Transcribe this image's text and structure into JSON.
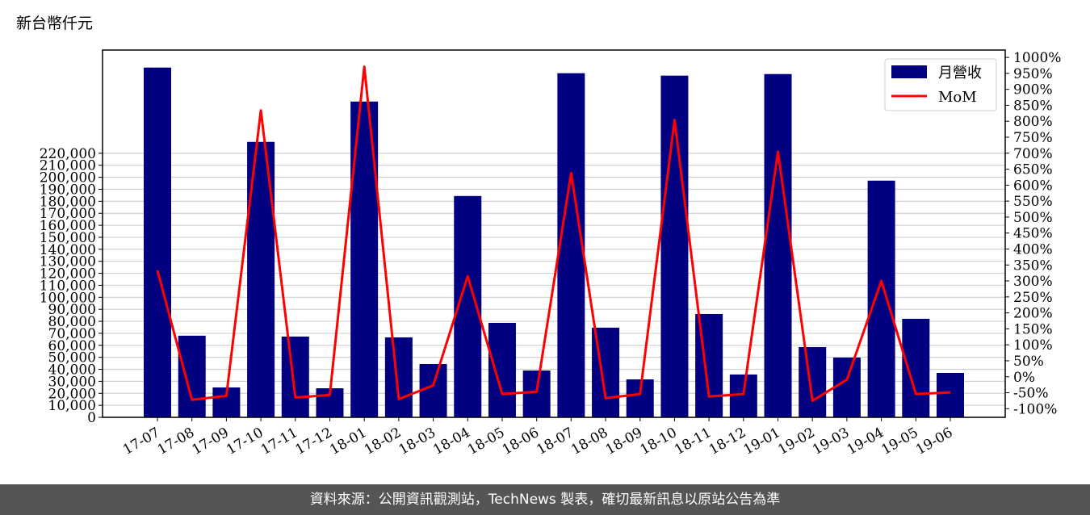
{
  "unit_label": "新台幣仟元",
  "footer": "資料來源：公開資訊觀測站，TechNews 製表，確切最新訊息以原站公告為準",
  "chart_data": {
    "type": "bar",
    "categories": [
      "17-07",
      "17-08",
      "17-09",
      "17-10",
      "17-11",
      "17-12",
      "18-01",
      "18-02",
      "18-03",
      "18-04",
      "18-05",
      "18-06",
      "18-07",
      "18-08",
      "18-09",
      "18-10",
      "18-11",
      "18-12",
      "19-01",
      "19-02",
      "19-03",
      "19-04",
      "19-05",
      "19-06"
    ],
    "series": [
      {
        "name": "月營收",
        "type": "bar",
        "axis": "left",
        "color": "#000080",
        "values": [
          291400,
          68000,
          24900,
          229500,
          67300,
          24200,
          263100,
          66600,
          44400,
          184400,
          78700,
          39000,
          286700,
          74700,
          31600,
          284700,
          86100,
          35700,
          286000,
          58500,
          49800,
          197200,
          82100,
          37000
        ]
      },
      {
        "name": "MoM",
        "type": "line",
        "axis": "right",
        "color": "#ff0000",
        "values": [
          333,
          -72,
          -60,
          834,
          -65,
          -57,
          971,
          -70,
          -27,
          315,
          -54,
          -47,
          638,
          -67,
          -54,
          804,
          -62,
          -54,
          705,
          -75,
          -9,
          300,
          -54,
          -49
        ]
      }
    ],
    "left_axis": {
      "ticks": [
        0,
        10000,
        20000,
        30000,
        40000,
        50000,
        60000,
        70000,
        80000,
        90000,
        100000,
        110000,
        120000,
        130000,
        140000,
        150000,
        160000,
        170000,
        180000,
        190000,
        200000,
        210000,
        220000
      ],
      "range": [
        0,
        306000
      ]
    },
    "right_axis": {
      "ticks": [
        -100,
        -50,
        0,
        50,
        100,
        150,
        200,
        250,
        300,
        350,
        400,
        450,
        500,
        550,
        600,
        650,
        700,
        750,
        800,
        850,
        900,
        950,
        1000
      ],
      "range": [
        -127,
        1023
      ]
    },
    "legend": "top-right",
    "grid": true
  }
}
